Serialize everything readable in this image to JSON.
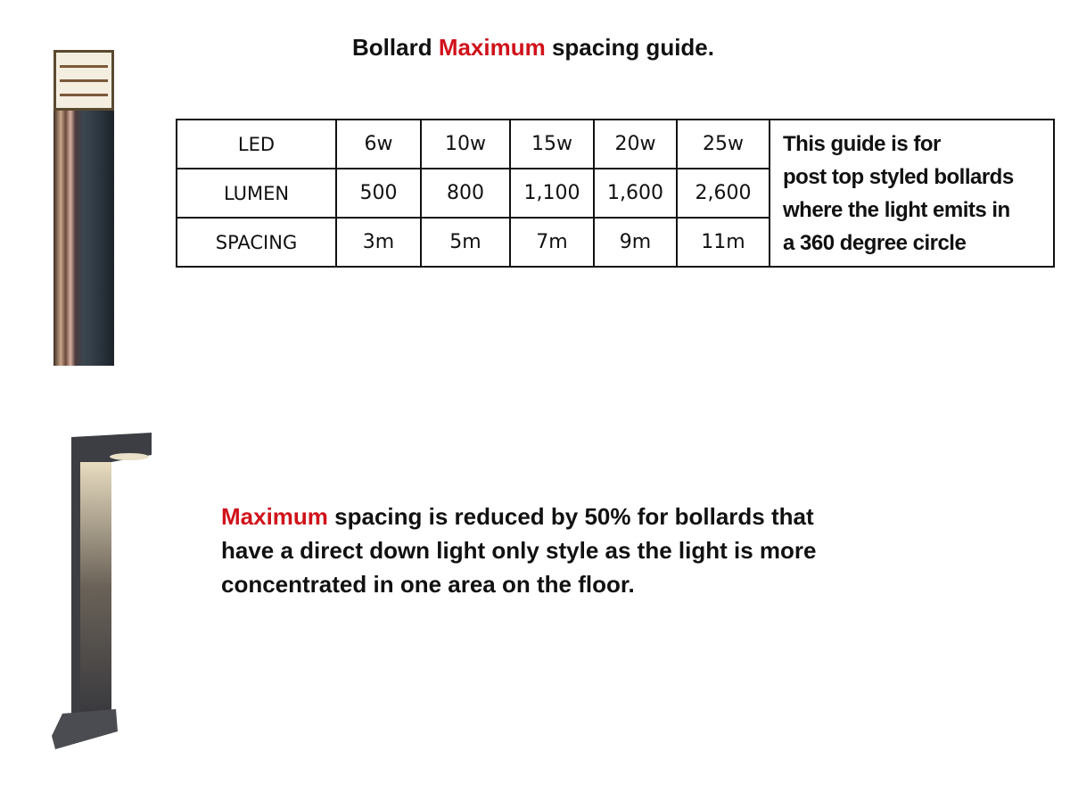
{
  "title": {
    "prefix": "Bollard ",
    "highlight": "Maximum",
    "suffix": " spacing guide."
  },
  "colors": {
    "highlight": "#d0121b",
    "text": "#111111"
  },
  "table": {
    "rows": [
      {
        "label": "LED",
        "values": [
          "6w",
          "10w",
          "15w",
          "20w",
          "25w"
        ]
      },
      {
        "label": "LUMEN",
        "values": [
          "500",
          "800",
          "1,100",
          "1,600",
          "2,600"
        ]
      },
      {
        "label": "SPACING",
        "values": [
          "3m",
          "5m",
          "7m",
          "9m",
          "11m"
        ]
      }
    ],
    "note": [
      "This guide is for",
      "post top styled bollards",
      "where the light emits in",
      "a 360 degree circle"
    ]
  },
  "paragraph": {
    "highlight": "Maximum",
    "line1": " spacing is reduced by 50% for bollards that",
    "line2": "have a direct down light only style as the light is  more",
    "line3": "concentrated in one area on the floor."
  },
  "images": {
    "top": "post-top-bollard",
    "bottom": "down-light-bollard"
  }
}
